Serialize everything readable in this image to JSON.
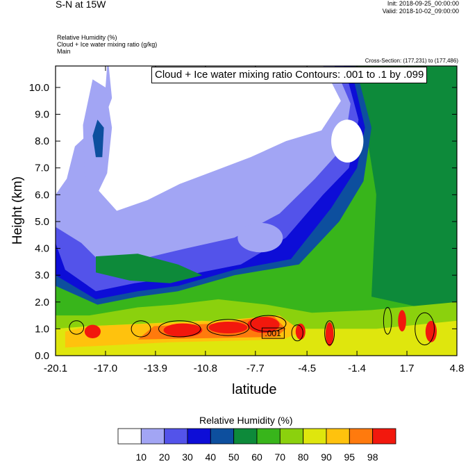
{
  "header": {
    "title": "S-N at 15W",
    "init": "Init: 2018-09-25_00:00:00",
    "valid": "Valid: 2018-10-02_09:00:00"
  },
  "meta": {
    "line1": "Relative Humidity   (%)",
    "line2": "Cloud + Ice water mixing ratio   (g/kg)",
    "line3": "Main"
  },
  "cross_section": "Cross-Section: (177,231) to (177,486)",
  "contour_label": "Cloud + Ice water mixing ratio Contours: .001 to .1 by .099",
  "contour_inline_label": ".001",
  "colors": {
    "levels": [
      "#ffffff",
      "#a2a5f4",
      "#5353ea",
      "#0d0dd7",
      "#0d4f9e",
      "#0d8a3a",
      "#38b51b",
      "#8bd10d",
      "#dfe60d",
      "#ffc20d",
      "#ff7a0d",
      "#f2180d"
    ]
  },
  "chart_data": {
    "type": "heatmap",
    "title": "Relative Humidity (%)",
    "xlabel": "latitude",
    "ylabel": "Height (km)",
    "x_ticks": [
      "-20.1",
      "-17.0",
      "-13.9",
      "-10.8",
      "-7.7",
      "-4.5",
      "-1.4",
      "1.7",
      "4.8"
    ],
    "x_values": [
      -20.1,
      -17.0,
      -13.9,
      -10.8,
      -7.7,
      -4.5,
      -1.4,
      1.7,
      4.8
    ],
    "y_ticks": [
      "0.0",
      "1.0",
      "2.0",
      "3.0",
      "4.0",
      "5.0",
      "6.0",
      "7.0",
      "8.0",
      "9.0",
      "10.0"
    ],
    "y_values": [
      0,
      1,
      2,
      3,
      4,
      5,
      6,
      7,
      8,
      9,
      10
    ],
    "xlim": [
      -20.1,
      4.8
    ],
    "ylim": [
      0,
      10.8
    ],
    "colorbar": {
      "title": "Relative Humidity  (%)",
      "labels": [
        "10",
        "20",
        "30",
        "40",
        "50",
        "60",
        "70",
        "80",
        "90",
        "95",
        "98"
      ]
    }
  }
}
